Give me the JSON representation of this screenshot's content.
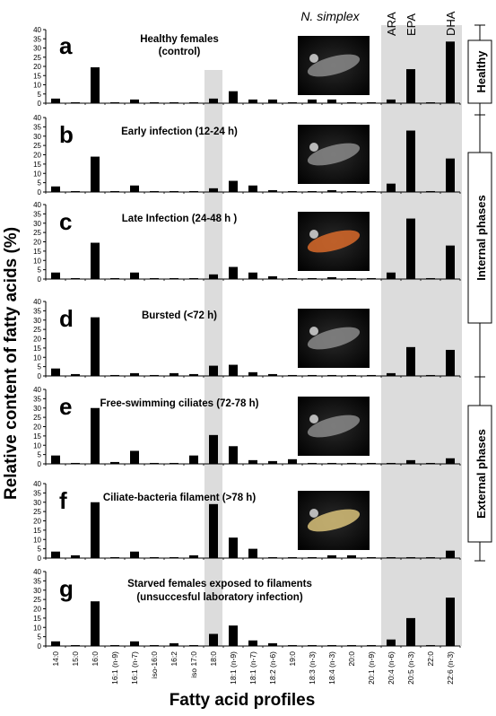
{
  "figure": {
    "ylabel": "Relative content of fatty acids (%)",
    "xlabel": "Fatty acid profiles",
    "species": "N. simplex",
    "highlight_labels": [
      "ARA",
      "EPA",
      "DHA"
    ],
    "phases": [
      {
        "label": "Healthy"
      },
      {
        "label": "Internal phases"
      },
      {
        "label": "External phases"
      }
    ]
  },
  "chart_data": [
    {
      "type": "bar",
      "panel": "a",
      "title": "Healthy females (control)",
      "ylim": [
        0,
        40
      ],
      "yticks": [
        0,
        5,
        10,
        15,
        20,
        25,
        30,
        35,
        40
      ],
      "categories": [
        "14:0",
        "15:0",
        "16:0",
        "16:1 (n-9)",
        "16:1 (n-7)",
        "iso-16:0",
        "16:2",
        "iso 17:0",
        "18:0",
        "18:1 (n-9)",
        "18:1 (n-7)",
        "18:2 (n-6)",
        "19:0",
        "18:3 (n-3)",
        "18:4 (n-3)",
        "20:0",
        "20:1 (n-9)",
        "20:4 (n-6)",
        "20:5 (n-3)",
        "22:0",
        "22:6 (n-3)"
      ],
      "values": [
        2.5,
        0.5,
        19.5,
        0.5,
        2,
        0.5,
        0.5,
        0.5,
        2.5,
        6.5,
        2,
        2,
        0.5,
        2,
        2,
        0.5,
        0.5,
        2,
        18.5,
        0.5,
        33.5
      ],
      "photo": true
    },
    {
      "type": "bar",
      "panel": "b",
      "title": "Early infection (12-24 h)",
      "ylim": [
        0,
        40
      ],
      "yticks": [
        0,
        5,
        10,
        15,
        20,
        25,
        30,
        35,
        40
      ],
      "categories": [
        "14:0",
        "15:0",
        "16:0",
        "16:1 (n-9)",
        "16:1 (n-7)",
        "iso-16:0",
        "16:2",
        "iso 17:0",
        "18:0",
        "18:1 (n-9)",
        "18:1 (n-7)",
        "18:2 (n-6)",
        "19:0",
        "18:3 (n-3)",
        "18:4 (n-3)",
        "20:0",
        "20:1 (n-9)",
        "20:4 (n-6)",
        "20:5 (n-3)",
        "22:0",
        "22:6 (n-3)"
      ],
      "values": [
        3,
        0.5,
        19,
        0.5,
        3.5,
        0.5,
        0.5,
        0.5,
        2,
        6,
        3.5,
        1,
        0.5,
        0.5,
        1,
        0.5,
        0.5,
        4.5,
        33,
        0.5,
        18
      ],
      "photo": true
    },
    {
      "type": "bar",
      "panel": "c",
      "title": "Late Infection (24-48 h )",
      "ylim": [
        0,
        40
      ],
      "yticks": [
        0,
        5,
        10,
        15,
        20,
        25,
        30,
        35,
        40
      ],
      "categories": [
        "14:0",
        "15:0",
        "16:0",
        "16:1 (n-9)",
        "16:1 (n-7)",
        "iso-16:0",
        "16:2",
        "iso 17:0",
        "18:0",
        "18:1 (n-9)",
        "18:1 (n-7)",
        "18:2 (n-6)",
        "19:0",
        "18:3 (n-3)",
        "18:4 (n-3)",
        "20:0",
        "20:1 (n-9)",
        "20:4 (n-6)",
        "20:5 (n-3)",
        "22:0",
        "22:6 (n-3)"
      ],
      "values": [
        3.5,
        0.5,
        19.5,
        0.5,
        3.5,
        0.5,
        0.5,
        0.5,
        2.5,
        6.5,
        3.5,
        1.5,
        0.5,
        0.5,
        1,
        0.5,
        0.5,
        3.5,
        32.5,
        0.5,
        18
      ],
      "photo": true
    },
    {
      "type": "bar",
      "panel": "d",
      "title": "Bursted (<72 h)",
      "ylim": [
        0,
        40
      ],
      "yticks": [
        0,
        5,
        10,
        15,
        20,
        25,
        30,
        35,
        40
      ],
      "categories": [
        "14:0",
        "15:0",
        "16:0",
        "16:1 (n-9)",
        "16:1 (n-7)",
        "iso-16:0",
        "16:2",
        "iso 17:0",
        "18:0",
        "18:1 (n-9)",
        "18:1 (n-7)",
        "18:2 (n-6)",
        "19:0",
        "18:3 (n-3)",
        "18:4 (n-3)",
        "20:0",
        "20:1 (n-9)",
        "20:4 (n-6)",
        "20:5 (n-3)",
        "22:0",
        "22:6 (n-3)"
      ],
      "values": [
        4,
        1,
        31.5,
        0.5,
        1.5,
        0.5,
        1.5,
        1,
        5.5,
        6,
        2,
        1,
        0.5,
        0.5,
        0.5,
        0.5,
        0.5,
        1.5,
        15.5,
        0.5,
        14
      ],
      "photo": true
    },
    {
      "type": "bar",
      "panel": "e",
      "title": "Free-swimming ciliates (72-78 h)",
      "ylim": [
        0,
        40
      ],
      "yticks": [
        0,
        5,
        10,
        15,
        20,
        25,
        30,
        35,
        40
      ],
      "categories": [
        "14:0",
        "15:0",
        "16:0",
        "16:1 (n-9)",
        "16:1 (n-7)",
        "iso-16:0",
        "16:2",
        "iso 17:0",
        "18:0",
        "18:1 (n-9)",
        "18:1 (n-7)",
        "18:2 (n-6)",
        "19:0",
        "18:3 (n-3)",
        "18:4 (n-3)",
        "20:0",
        "20:1 (n-9)",
        "20:4 (n-6)",
        "20:5 (n-3)",
        "22:0",
        "22:6 (n-3)"
      ],
      "values": [
        4.5,
        0.5,
        30,
        1,
        7,
        0.5,
        0.5,
        4.5,
        15.5,
        9.5,
        2,
        1.5,
        2.5,
        0.5,
        0.5,
        0.5,
        0.5,
        0.5,
        2,
        0.5,
        3
      ],
      "photo": true
    },
    {
      "type": "bar",
      "panel": "f",
      "title": "Ciliate-bacteria filament (>78 h)",
      "ylim": [
        0,
        40
      ],
      "yticks": [
        0,
        5,
        10,
        15,
        20,
        25,
        30,
        35,
        40
      ],
      "categories": [
        "14:0",
        "15:0",
        "16:0",
        "16:1 (n-9)",
        "16:1 (n-7)",
        "iso-16:0",
        "16:2",
        "iso 17:0",
        "18:0",
        "18:1 (n-9)",
        "18:1 (n-7)",
        "18:2 (n-6)",
        "19:0",
        "18:3 (n-3)",
        "18:4 (n-3)",
        "20:0",
        "20:1 (n-9)",
        "20:4 (n-6)",
        "20:5 (n-3)",
        "22:0",
        "22:6 (n-3)"
      ],
      "values": [
        3.5,
        1.5,
        30,
        0.5,
        3.5,
        0.5,
        0.5,
        1.5,
        29,
        11,
        5,
        0.5,
        0.5,
        0.5,
        1.5,
        1.5,
        0.5,
        0.5,
        0.5,
        0.5,
        4
      ],
      "photo": true
    },
    {
      "type": "bar",
      "panel": "g",
      "title": "Starved females exposed to filaments",
      "title2": "(unsuccesful laboratory infection)",
      "ylim": [
        0,
        40
      ],
      "yticks": [
        0,
        5,
        10,
        15,
        20,
        25,
        30,
        35,
        40
      ],
      "categories": [
        "14:0",
        "15:0",
        "16:0",
        "16:1 (n-9)",
        "16:1 (n-7)",
        "iso-16:0",
        "16:2",
        "iso 17:0",
        "18:0",
        "18:1 (n-9)",
        "18:1 (n-7)",
        "18:2 (n-6)",
        "19:0",
        "18:3 (n-3)",
        "18:4 (n-3)",
        "20:0",
        "20:1 (n-9)",
        "20:4 (n-6)",
        "20:5 (n-3)",
        "22:0",
        "22:6 (n-3)"
      ],
      "values": [
        2.5,
        0.5,
        24,
        0.5,
        2.5,
        0.5,
        1.5,
        0.5,
        6.5,
        11,
        3,
        1.5,
        0.5,
        0.5,
        0.5,
        0.5,
        0.5,
        3.5,
        15,
        0.5,
        26
      ],
      "photo": false
    }
  ]
}
